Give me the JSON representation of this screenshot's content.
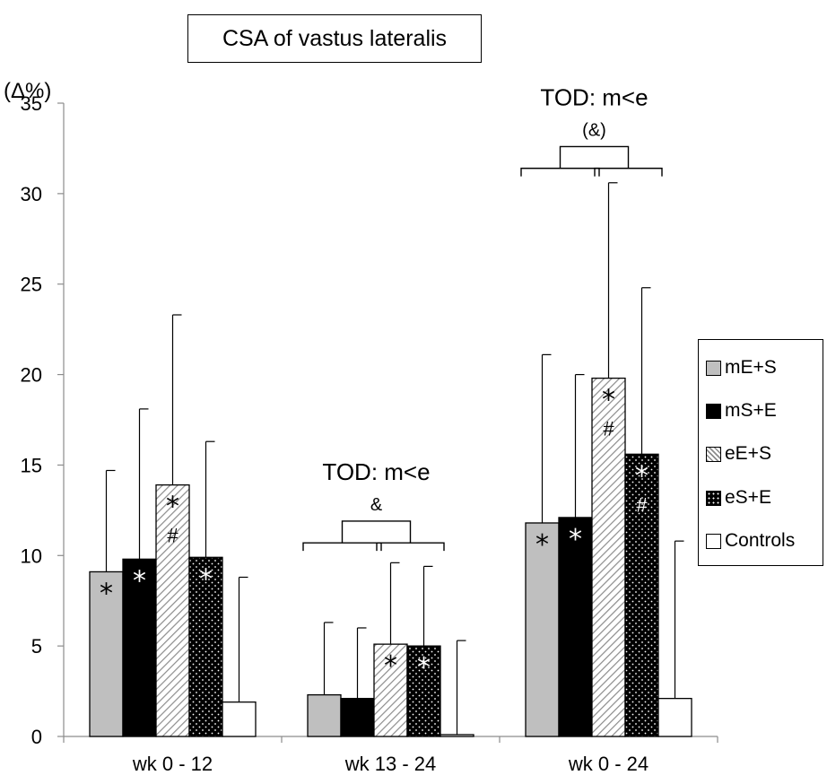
{
  "chart_data": {
    "type": "bar",
    "title": "CSA of vastus lateralis",
    "ylabel": "(Δ%)",
    "ylim": [
      0,
      35
    ],
    "yticks": [
      0,
      5,
      10,
      15,
      20,
      25,
      30,
      35
    ],
    "categories": [
      "wk 0 - 12",
      "wk 13 - 24",
      "wk 0 - 24"
    ],
    "series": [
      {
        "name": "mE+S",
        "fill": "gray",
        "values": [
          9.1,
          2.3,
          11.8
        ],
        "errors": [
          5.6,
          4.0,
          9.3
        ],
        "markers": [
          "*",
          "",
          "*"
        ]
      },
      {
        "name": "mS+E",
        "fill": "black",
        "values": [
          9.8,
          2.1,
          12.1
        ],
        "errors": [
          8.3,
          3.9,
          7.9
        ],
        "markers": [
          "*",
          "",
          "*"
        ]
      },
      {
        "name": "eE+S",
        "fill": "hatch",
        "values": [
          13.9,
          5.1,
          19.8
        ],
        "errors": [
          9.4,
          4.5,
          10.8
        ],
        "markers": [
          "*#",
          "*",
          "*#"
        ]
      },
      {
        "name": "eS+E",
        "fill": "dots",
        "values": [
          9.9,
          5.0,
          15.6
        ],
        "errors": [
          6.4,
          4.4,
          9.2
        ],
        "markers": [
          "*",
          "*",
          "*#"
        ]
      },
      {
        "name": "Controls",
        "fill": "white",
        "values": [
          1.9,
          0.1,
          2.1
        ],
        "errors": [
          6.9,
          5.2,
          8.7
        ],
        "markers": [
          "",
          "",
          ""
        ]
      }
    ],
    "annotations": [
      {
        "category": "wk 13 - 24",
        "text": "TOD: m<e",
        "sub": "&"
      },
      {
        "category": "wk 0 - 24",
        "text": "TOD: m<e",
        "sub": "(&)"
      }
    ],
    "legend_position": "right",
    "grid": false,
    "colors": {
      "gray": "#bfbfbf",
      "black": "#000000",
      "white": "#ffffff"
    }
  }
}
